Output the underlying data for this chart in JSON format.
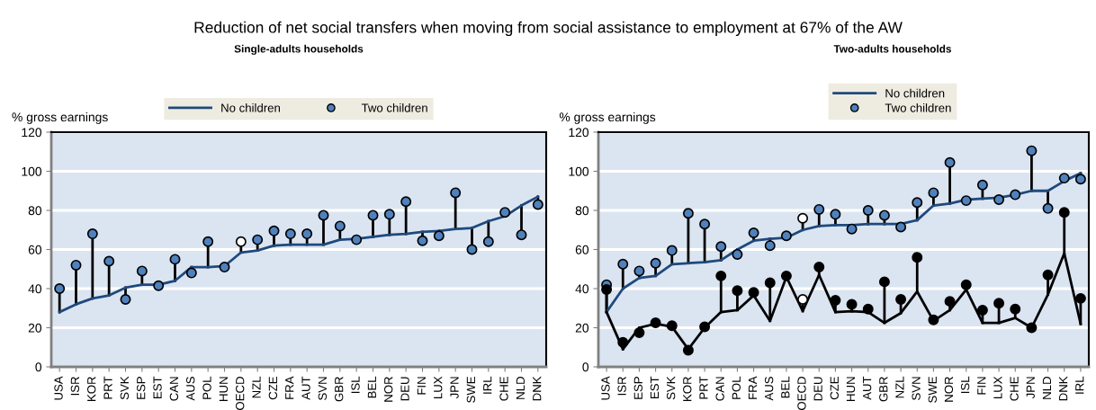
{
  "chart_data": [
    {
      "type": "line",
      "title": "Reduction of net social transfers when moving from social assistance to employment at 67% of the AW",
      "subtitle": "Single-adults households",
      "ylabel": "% gross earnings",
      "ylim": [
        0,
        120
      ],
      "yticks": [
        0,
        20,
        40,
        60,
        80,
        100,
        120
      ],
      "grid": "y",
      "legend": "top",
      "categories": [
        "USA",
        "ISR",
        "KOR",
        "PRT",
        "SVK",
        "ESP",
        "EST",
        "CAN",
        "AUS",
        "POL",
        "HUN",
        "OECD",
        "NZL",
        "CZE",
        "FRA",
        "AUT",
        "SVN",
        "GBR",
        "ISL",
        "BEL",
        "NOR",
        "DEU",
        "FIN",
        "LUX",
        "JPN",
        "SWE",
        "IRL",
        "CHE",
        "NLD",
        "DNK"
      ],
      "series": [
        {
          "name": "No children",
          "color": "#1f497d",
          "values": [
            28,
            32,
            35,
            36.5,
            40.5,
            42,
            42,
            44,
            51,
            51,
            51.5,
            58.5,
            59.5,
            62,
            62.5,
            62.5,
            62.5,
            65,
            65.5,
            66.5,
            67.5,
            68,
            69,
            69.5,
            70.5,
            71,
            74.5,
            77,
            82.5,
            87
          ]
        },
        {
          "name": "Two children",
          "type": "lollipop",
          "marker": "circle",
          "color": "#4f81bd",
          "colors": [
            "#4f81bd",
            "#4f81bd",
            "#4f81bd",
            "#4f81bd",
            "#4f81bd",
            "#4f81bd",
            "#4f81bd",
            "#4f81bd",
            "#4f81bd",
            "#4f81bd",
            "#4f81bd",
            "#ffffff",
            "#4f81bd",
            "#4f81bd",
            "#4f81bd",
            "#4f81bd",
            "#4f81bd",
            "#4f81bd",
            "#4f81bd",
            "#4f81bd",
            "#4f81bd",
            "#4f81bd",
            "#4f81bd",
            "#4f81bd",
            "#4f81bd",
            "#4f81bd",
            "#4f81bd",
            "#4f81bd",
            "#4f81bd",
            "#4f81bd"
          ],
          "values": [
            40,
            52,
            68,
            54,
            34.5,
            49,
            41.5,
            55,
            48,
            64,
            51,
            64,
            65,
            69.5,
            68,
            68,
            77.5,
            72,
            65,
            77.5,
            78,
            84.5,
            64.5,
            67,
            89,
            60,
            64,
            79,
            67.5,
            83
          ],
          "errors": [
            [
              28,
              40
            ],
            [
              32,
              52
            ],
            [
              35,
              68
            ],
            [
              36.5,
              54
            ],
            [
              34.5,
              40.5
            ],
            [
              42,
              49
            ],
            null,
            [
              44,
              55
            ],
            [
              48,
              51
            ],
            [
              51,
              64
            ],
            null,
            [
              58.5,
              64
            ],
            [
              59.5,
              65
            ],
            [
              62,
              69.5
            ],
            [
              62.5,
              68
            ],
            [
              62.5,
              68
            ],
            [
              62.5,
              77.5
            ],
            [
              65,
              72
            ],
            null,
            [
              66.5,
              77.5
            ],
            [
              67.5,
              78
            ],
            [
              68,
              84.5
            ],
            [
              64.5,
              69
            ],
            [
              67,
              69.5
            ],
            [
              70.5,
              89
            ],
            [
              60,
              71
            ],
            [
              64,
              74.5
            ],
            [
              77,
              79
            ],
            [
              67.5,
              82.5
            ],
            [
              83,
              87
            ]
          ]
        }
      ]
    },
    {
      "type": "line",
      "subtitle": "Two-adults households",
      "ylabel": "% gross earnings",
      "ylim": [
        0,
        120
      ],
      "yticks": [
        0,
        20,
        40,
        60,
        80,
        100,
        120
      ],
      "grid": "y",
      "legend": "top",
      "categories": [
        "USA",
        "ISR",
        "ESP",
        "EST",
        "SVK",
        "KOR",
        "PRT",
        "CAN",
        "POL",
        "FRA",
        "AUS",
        "BEL",
        "OECD",
        "DEU",
        "CZE",
        "HUN",
        "AUT",
        "GBR",
        "NZL",
        "SVN",
        "SWE",
        "NOR",
        "ISL",
        "FIN",
        "LUX",
        "CHE",
        "JPN",
        "NLD",
        "DNK",
        "IRL"
      ],
      "series": [
        {
          "name": "No children",
          "color": "#1f497d",
          "values": [
            28,
            40,
            45.5,
            46.5,
            52.5,
            53,
            53.5,
            54.5,
            60,
            64.5,
            65.5,
            66,
            70,
            72,
            72.5,
            72.5,
            73,
            73,
            73,
            75,
            82.5,
            83.5,
            85.5,
            86,
            86.5,
            88,
            90,
            90,
            95,
            99
          ]
        },
        {
          "name": "Two children",
          "type": "lollipop",
          "marker": "circle",
          "color": "#4f81bd",
          "colors": [
            "#4f81bd",
            "#4f81bd",
            "#4f81bd",
            "#4f81bd",
            "#4f81bd",
            "#4f81bd",
            "#4f81bd",
            "#4f81bd",
            "#4f81bd",
            "#4f81bd",
            "#4f81bd",
            "#4f81bd",
            "#ffffff",
            "#4f81bd",
            "#4f81bd",
            "#4f81bd",
            "#4f81bd",
            "#4f81bd",
            "#4f81bd",
            "#4f81bd",
            "#4f81bd",
            "#4f81bd",
            "#4f81bd",
            "#4f81bd",
            "#4f81bd",
            "#4f81bd",
            "#4f81bd",
            "#4f81bd",
            "#4f81bd",
            "#4f81bd"
          ],
          "values": [
            42,
            52.5,
            49,
            53,
            59.5,
            78.5,
            73,
            61.5,
            57.5,
            68.5,
            62,
            67,
            76,
            80.5,
            78,
            70.5,
            80,
            77.5,
            71.5,
            84,
            89,
            104.5,
            85,
            93,
            85.5,
            88,
            110.5,
            81,
            96.5,
            96
          ],
          "errors": [
            [
              28,
              42
            ],
            [
              40,
              52.5
            ],
            [
              45.5,
              49
            ],
            [
              46.5,
              53
            ],
            [
              52.5,
              59.5
            ],
            [
              53,
              78.5
            ],
            [
              53.5,
              73
            ],
            [
              54.5,
              61.5
            ],
            [
              57.5,
              60
            ],
            [
              64.5,
              68.5
            ],
            [
              62,
              65.5
            ],
            null,
            [
              70,
              76
            ],
            [
              72,
              80.5
            ],
            [
              72.5,
              78
            ],
            [
              70.5,
              72.5
            ],
            [
              73,
              80
            ],
            [
              73,
              77.5
            ],
            [
              71.5,
              73
            ],
            [
              75,
              84
            ],
            [
              82.5,
              89
            ],
            [
              83.5,
              104.5
            ],
            null,
            [
              86,
              93
            ],
            null,
            null,
            [
              90,
              110.5
            ],
            [
              81,
              90
            ],
            [
              95,
              96.5
            ],
            [
              96,
              99
            ]
          ]
        },
        {
          "color": "#000000",
          "values": [
            28,
            9,
            20,
            22,
            20.5,
            9,
            20,
            28,
            29,
            36.5,
            23.5,
            46,
            28.5,
            47,
            28,
            28.5,
            28,
            22.5,
            27.5,
            38.5,
            23.5,
            29,
            39.5,
            22.5,
            22.5,
            25,
            20,
            37,
            58,
            22
          ]
        },
        {
          "type": "lollipop",
          "marker": "circle",
          "color": "#000000",
          "colors": [
            "#000000",
            "#000000",
            "#000000",
            "#000000",
            "#000000",
            "#000000",
            "#000000",
            "#000000",
            "#000000",
            "#000000",
            "#000000",
            "#000000",
            "#ffffff",
            "#000000",
            "#000000",
            "#000000",
            "#000000",
            "#000000",
            "#000000",
            "#000000",
            "#000000",
            "#000000",
            "#000000",
            "#000000",
            "#000000",
            "#000000",
            "#000000",
            "#000000",
            "#000000",
            "#000000"
          ],
          "values": [
            39.5,
            12.5,
            17.5,
            22.5,
            21,
            8.5,
            20.5,
            46.5,
            39,
            38,
            43,
            46.5,
            34.5,
            51,
            34,
            32,
            29.5,
            43.5,
            34.5,
            56,
            24,
            33.5,
            42,
            29,
            32.5,
            29.5,
            20,
            47,
            79,
            35
          ],
          "errors": [
            [
              28,
              39.5
            ],
            [
              9,
              12.5
            ],
            [
              17.5,
              20
            ],
            null,
            null,
            null,
            null,
            [
              28,
              46.5
            ],
            [
              29,
              39
            ],
            [
              36.5,
              38
            ],
            [
              23.5,
              43
            ],
            null,
            [
              28.5,
              34.5
            ],
            [
              47,
              51
            ],
            [
              28,
              34
            ],
            [
              28.5,
              32
            ],
            [
              28,
              29.5
            ],
            [
              22.5,
              43.5
            ],
            [
              27.5,
              34.5
            ],
            [
              38.5,
              56
            ],
            null,
            [
              29,
              33.5
            ],
            [
              39.5,
              42
            ],
            [
              22.5,
              29
            ],
            [
              22.5,
              32.5
            ],
            [
              25,
              29.5
            ],
            null,
            [
              37,
              47
            ],
            [
              58,
              79
            ],
            [
              22,
              35
            ]
          ]
        }
      ]
    }
  ]
}
